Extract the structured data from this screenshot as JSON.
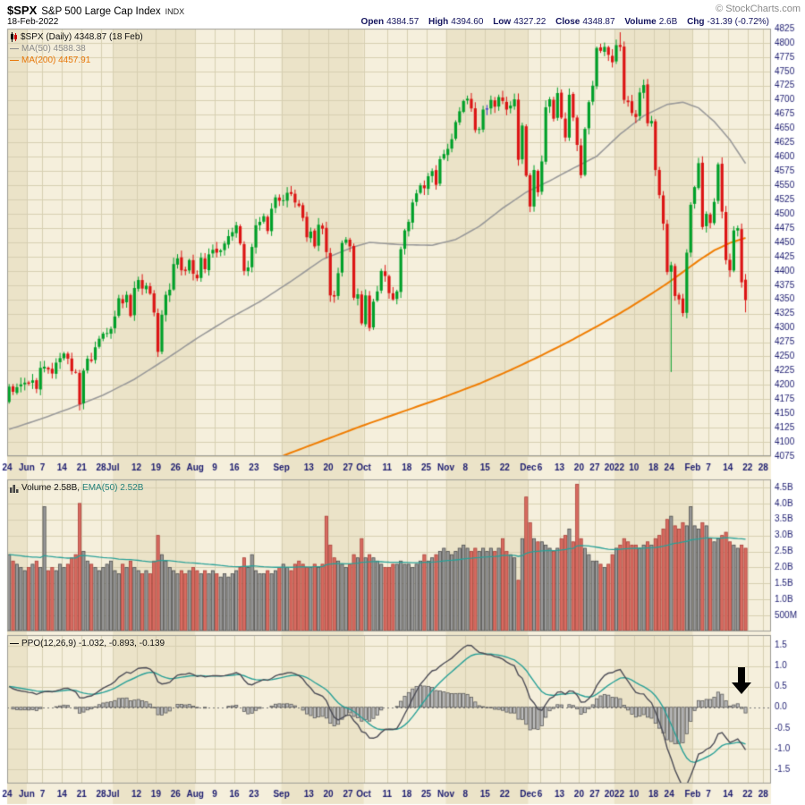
{
  "header": {
    "symbol": "$SPX",
    "name": "S&P 500 Large Cap Index",
    "exchange": "INDX",
    "copyright": "© StockCharts.com",
    "date": "18-Feb-2022",
    "quote": {
      "open_label": "Open",
      "open": "4384.57",
      "high_label": "High",
      "high": "4394.60",
      "low_label": "Low",
      "low": "4327.22",
      "close_label": "Close",
      "close": "4348.87",
      "volume_label": "Volume",
      "volume": "2.6B",
      "chg_label": "Chg",
      "chg": "-31.39 (-0.72%)"
    }
  },
  "legends": {
    "price": {
      "title": "$SPX (Daily) 4348.87 (18 Feb)",
      "ma50": "MA(50) 4588.38",
      "ma200": "MA(200) 4457.91"
    },
    "volume": {
      "title": "Volume 2.58B,",
      "ema": "EMA(50) 2.52B"
    },
    "ppo": {
      "title": "PPO(12,26,9) -1.032, -0.893, -0.139"
    }
  },
  "ui": {
    "dash": "—"
  },
  "colors": {
    "plot_bg": "#f5efdc",
    "band": "#ebe3c8",
    "grid": "#d7cfb2",
    "border": "#9c9c94",
    "axis_text": "#1b1b6f",
    "candle_up": "#00a029",
    "candle_down": "#dc1414",
    "candle_mixed": "#3c3ccc",
    "ma50": "#9a9a9a",
    "ma200": "#f07d02",
    "vol_up_fill": "#999999",
    "vol_up_stroke": "#4d4d4d",
    "vol_down_fill": "#d96c62",
    "vol_down_stroke": "#aa4038",
    "vol_ema": "#2aa198",
    "ppo_line": "#4d4d57",
    "ppo_signal": "#2aa198",
    "hist_fill": "#bdbdbd",
    "hist_stroke": "#5c5c5c",
    "annotation": "#000000"
  },
  "chart_data": [
    {
      "type": "candlestick",
      "title": "$SPX (Daily) 4348.87 (18 Feb)",
      "ylabel": "Price",
      "ylim": [
        4075,
        4825
      ],
      "ytick_step": 25,
      "price_ticks": [
        4825,
        4800,
        4775,
        4750,
        4725,
        4700,
        4675,
        4650,
        4625,
        4600,
        4575,
        4550,
        4525,
        4500,
        4475,
        4450,
        4425,
        4400,
        4375,
        4350,
        4325,
        4300,
        4275,
        4250,
        4225,
        4200,
        4175,
        4150,
        4125,
        4100,
        4075
      ],
      "x_labels": [
        [
          "24",
          0
        ],
        [
          "Jun",
          5
        ],
        [
          "7",
          9
        ],
        [
          "14",
          14
        ],
        [
          "21",
          19
        ],
        [
          "28",
          24
        ],
        [
          "Jul",
          27
        ],
        [
          "12",
          33
        ],
        [
          "19",
          38
        ],
        [
          "26",
          43
        ],
        [
          "Aug",
          48
        ],
        [
          "9",
          53
        ],
        [
          "16",
          58
        ],
        [
          "23",
          63
        ],
        [
          "Sep",
          70
        ],
        [
          "13",
          77
        ],
        [
          "20",
          82
        ],
        [
          "27",
          87
        ],
        [
          "Oct",
          91
        ],
        [
          "11",
          97
        ],
        [
          "18",
          102
        ],
        [
          "25",
          107
        ],
        [
          "Nov",
          112
        ],
        [
          "8",
          117
        ],
        [
          "15",
          122
        ],
        [
          "22",
          127
        ],
        [
          "Dec",
          133
        ],
        [
          "6",
          136
        ],
        [
          "13",
          141
        ],
        [
          "20",
          146
        ],
        [
          "27",
          150
        ],
        [
          "2022",
          155
        ],
        [
          "10",
          160
        ],
        [
          "18",
          165
        ],
        [
          "24",
          169
        ],
        [
          "Feb",
          175
        ],
        [
          "7",
          179
        ],
        [
          "14",
          184
        ],
        [
          "22",
          189
        ],
        [
          "28",
          193
        ]
      ],
      "month_bands": [
        [
          0,
          5
        ],
        [
          5,
          27
        ],
        [
          27,
          48
        ],
        [
          48,
          70
        ],
        [
          70,
          91
        ],
        [
          91,
          112
        ],
        [
          112,
          133
        ],
        [
          133,
          155
        ],
        [
          155,
          175
        ],
        [
          175,
          195
        ]
      ],
      "first_open": 4170,
      "closes": [
        4197,
        4188,
        4196,
        4201,
        4204,
        4202,
        4208,
        4193,
        4230,
        4232,
        4227,
        4220,
        4239,
        4247,
        4255,
        4246,
        4224,
        4222,
        4166,
        4225,
        4246,
        4242,
        4266,
        4281,
        4290,
        4291,
        4298,
        4320,
        4352,
        4343,
        4358,
        4321,
        4370,
        4384,
        4369,
        4374,
        4360,
        4327,
        4258,
        4323,
        4358,
        4367,
        4412,
        4422,
        4401,
        4400,
        4419,
        4395,
        4387,
        4423,
        4403,
        4429,
        4437,
        4432,
        4436,
        4448,
        4461,
        4468,
        4480,
        4448,
        4400,
        4406,
        4442,
        4480,
        4486,
        4496,
        4470,
        4509,
        4529,
        4523,
        4524,
        4537,
        4535,
        4520,
        4514,
        4493,
        4459,
        4469,
        4443,
        4481,
        4474,
        4433,
        4357,
        4355,
        4396,
        4449,
        4455,
        4443,
        4353,
        4359,
        4308,
        4357,
        4300,
        4346,
        4364,
        4400,
        4391,
        4361,
        4350,
        4364,
        4438,
        4471,
        4486,
        4520,
        4536,
        4550,
        4545,
        4566,
        4575,
        4551,
        4596,
        4605,
        4614,
        4631,
        4661,
        4680,
        4698,
        4702,
        4685,
        4647,
        4649,
        4683,
        4683,
        4700,
        4688,
        4705,
        4698,
        4683,
        4690,
        4701,
        4595,
        4655,
        4567,
        4513,
        4577,
        4538,
        4592,
        4687,
        4701,
        4667,
        4712,
        4669,
        4634,
        4709,
        4669,
        4621,
        4568,
        4649,
        4696,
        4725,
        4791,
        4786,
        4793,
        4779,
        4766,
        4796,
        4793,
        4700,
        4696,
        4677,
        4670,
        4713,
        4726,
        4659,
        4663,
        4577,
        4533,
        4483,
        4398,
        4410,
        4356,
        4350,
        4326,
        4432,
        4516,
        4547,
        4589,
        4477,
        4500,
        4484,
        4521,
        4587,
        4504,
        4419,
        4401,
        4471,
        4475,
        4380,
        4348.87
      ],
      "overrides": {
        "156": {
          "h": 4818.62
        },
        "169": {
          "l": 4222.62
        },
        "188": {
          "o": 4384.57,
          "h": 4394.6,
          "l": 4327.22
        }
      },
      "ma50": {
        "label": "MA(50) 4588.38",
        "last": 4588.38,
        "anchors": [
          [
            0,
            4122
          ],
          [
            8,
            4140
          ],
          [
            16,
            4160
          ],
          [
            24,
            4182
          ],
          [
            32,
            4210
          ],
          [
            40,
            4245
          ],
          [
            48,
            4282
          ],
          [
            56,
            4316
          ],
          [
            64,
            4346
          ],
          [
            72,
            4382
          ],
          [
            80,
            4420
          ],
          [
            88,
            4442
          ],
          [
            92,
            4450
          ],
          [
            100,
            4446
          ],
          [
            108,
            4445
          ],
          [
            114,
            4455
          ],
          [
            120,
            4478
          ],
          [
            126,
            4510
          ],
          [
            132,
            4538
          ],
          [
            138,
            4558
          ],
          [
            144,
            4580
          ],
          [
            150,
            4601
          ],
          [
            156,
            4640
          ],
          [
            162,
            4672
          ],
          [
            168,
            4692
          ],
          [
            172,
            4696
          ],
          [
            176,
            4686
          ],
          [
            180,
            4662
          ],
          [
            184,
            4630
          ],
          [
            188,
            4588.38
          ]
        ]
      },
      "ma200": {
        "label": "MA(200) 4457.91",
        "last": 4457.91,
        "anchors": [
          [
            70,
            4076
          ],
          [
            80,
            4102
          ],
          [
            90,
            4128
          ],
          [
            100,
            4152
          ],
          [
            110,
            4176
          ],
          [
            120,
            4202
          ],
          [
            128,
            4226
          ],
          [
            136,
            4252
          ],
          [
            144,
            4280
          ],
          [
            152,
            4310
          ],
          [
            158,
            4334
          ],
          [
            164,
            4360
          ],
          [
            168,
            4378
          ],
          [
            172,
            4398
          ],
          [
            176,
            4418
          ],
          [
            180,
            4436
          ],
          [
            184,
            4449
          ],
          [
            188,
            4457.91
          ]
        ]
      }
    },
    {
      "type": "bar",
      "title": "Volume 2.58B, EMA(50) 2.52B",
      "ylim": [
        0,
        4.75
      ],
      "yticks": [
        [
          "4.5B",
          4.5
        ],
        [
          "4.0B",
          4.0
        ],
        [
          "3.5B",
          3.5
        ],
        [
          "3.0B",
          3.0
        ],
        [
          "2.5B",
          2.5
        ],
        [
          "2.0B",
          2.0
        ],
        [
          "1.5B",
          1.5
        ],
        [
          "1.0B",
          1.0
        ],
        [
          "500M",
          0.5
        ]
      ],
      "ema_period": 50,
      "values": [
        2.4,
        2.2,
        2.1,
        2.0,
        1.9,
        2.0,
        2.1,
        2.2,
        2.0,
        3.9,
        1.9,
        2.0,
        1.9,
        2.1,
        2.0,
        2.1,
        2.3,
        2.4,
        4.0,
        2.5,
        2.2,
        2.1,
        2.0,
        1.9,
        2.0,
        2.1,
        2.2,
        1.9,
        1.8,
        2.1,
        2.0,
        2.2,
        2.0,
        1.9,
        1.8,
        1.9,
        1.8,
        2.2,
        3.0,
        2.4,
        2.2,
        2.0,
        1.9,
        1.8,
        1.9,
        1.8,
        1.9,
        2.0,
        1.9,
        1.8,
        1.9,
        1.8,
        1.9,
        1.8,
        1.7,
        1.8,
        1.7,
        1.8,
        1.9,
        2.0,
        2.3,
        2.0,
        2.4,
        1.9,
        1.8,
        1.8,
        1.9,
        1.8,
        1.9,
        2.0,
        2.1,
        2.0,
        1.9,
        2.1,
        2.2,
        2.1,
        2.0,
        2.0,
        2.1,
        2.0,
        2.1,
        3.6,
        2.7,
        2.3,
        2.2,
        2.1,
        2.0,
        2.1,
        2.4,
        2.3,
        2.9,
        2.3,
        2.4,
        2.3,
        2.2,
        2.1,
        2.0,
        2.0,
        2.1,
        2.1,
        2.2,
        2.1,
        2.1,
        2.0,
        2.1,
        2.2,
        2.4,
        2.2,
        2.3,
        2.4,
        2.5,
        2.6,
        2.5,
        2.4,
        2.5,
        2.6,
        2.7,
        2.6,
        2.5,
        2.6,
        2.5,
        2.6,
        2.5,
        2.6,
        2.5,
        2.6,
        2.9,
        2.5,
        2.4,
        2.3,
        1.6,
        2.9,
        4.2,
        3.4,
        2.9,
        2.8,
        2.8,
        2.7,
        2.6,
        2.5,
        2.6,
        2.9,
        3.0,
        3.2,
        2.8,
        4.6,
        2.9,
        2.6,
        2.4,
        2.2,
        2.2,
        2.1,
        2.0,
        2.1,
        2.4,
        2.6,
        2.7,
        2.9,
        2.8,
        2.7,
        2.7,
        2.6,
        2.7,
        2.8,
        2.7,
        2.9,
        3.0,
        3.2,
        3.5,
        3.6,
        3.3,
        3.2,
        3.4,
        3.3,
        3.9,
        3.3,
        3.2,
        3.4,
        3.3,
        2.9,
        2.8,
        2.9,
        3.0,
        3.1,
        2.8,
        2.7,
        2.6,
        2.7,
        2.6
      ]
    },
    {
      "type": "line",
      "title": "PPO(12,26,9) -1.032, -0.893, -0.139",
      "periods": [
        12,
        26,
        9
      ],
      "last": {
        "ppo": -1.032,
        "signal": -0.893,
        "hist": -0.139
      },
      "ylim": [
        -1.85,
        1.75
      ],
      "yticks": [
        [
          "1.5",
          1.5
        ],
        [
          "1.0",
          1.0
        ],
        [
          "0.5",
          0.5
        ],
        [
          "0.0",
          0.0
        ],
        [
          "-0.5",
          -0.5
        ],
        [
          "-1.0",
          -1.0
        ],
        [
          "-1.5",
          -1.5
        ]
      ],
      "derive_from_closes": true,
      "seed": {
        "ema12": 4197,
        "ema26": 4176
      },
      "annotation": {
        "type": "down-arrow",
        "index": 187,
        "value_top": 0.95
      }
    }
  ]
}
